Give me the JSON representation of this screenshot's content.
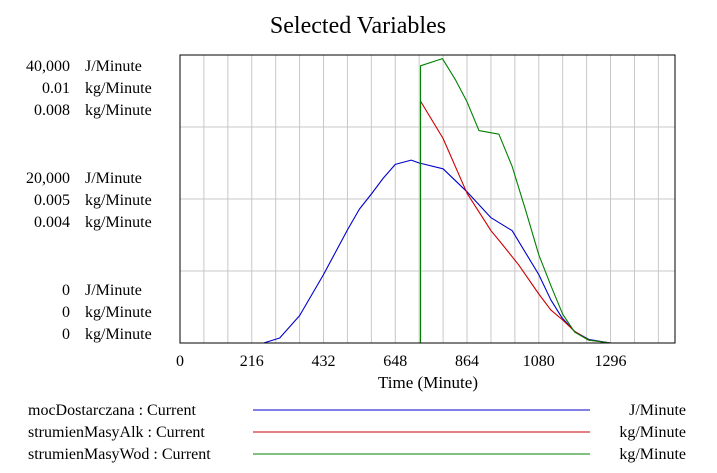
{
  "chart_data": {
    "type": "line",
    "title": "Selected Variables",
    "xlabel": "Time (Minute)",
    "xlim": [
      0,
      1490
    ],
    "xticks": [
      0,
      216,
      432,
      648,
      864,
      1080,
      1296
    ],
    "x_grid_step": 72,
    "grid": true,
    "legend_placement": "bottom",
    "y_axes": [
      {
        "unit": "J/Minute",
        "ticks": [
          "40,000",
          "20,000",
          "0"
        ],
        "ylim": [
          0,
          40000
        ]
      },
      {
        "unit": "kg/Minute",
        "ticks": [
          "0.01",
          "0.005",
          "0"
        ],
        "ylim": [
          0,
          0.01
        ]
      },
      {
        "unit": "kg/Minute",
        "ticks": [
          "0.008",
          "0.004",
          "0"
        ],
        "ylim": [
          0,
          0.008
        ]
      }
    ],
    "series": [
      {
        "name": "mocDostarczana : Current",
        "unit": "J/Minute",
        "axis": 0,
        "color": "#0000cc",
        "points": [
          [
            0,
            0
          ],
          [
            216,
            0
          ],
          [
            252,
            0
          ],
          [
            300,
            700
          ],
          [
            360,
            3800
          ],
          [
            432,
            9500
          ],
          [
            504,
            15700
          ],
          [
            540,
            18600
          ],
          [
            576,
            20700
          ],
          [
            612,
            22900
          ],
          [
            648,
            24800
          ],
          [
            696,
            25400
          ],
          [
            720,
            25000
          ],
          [
            792,
            24200
          ],
          [
            864,
            21000
          ],
          [
            936,
            17400
          ],
          [
            1000,
            15600
          ],
          [
            1080,
            9500
          ],
          [
            1116,
            6000
          ],
          [
            1150,
            3500
          ],
          [
            1188,
            1600
          ],
          [
            1230,
            500
          ],
          [
            1296,
            0
          ],
          [
            1490,
            0
          ]
        ]
      },
      {
        "name": "strumienMasyAlk : Current",
        "unit": "kg/Minute",
        "axis": 1,
        "color": "#cc0000",
        "points": [
          [
            0,
            0
          ],
          [
            724,
            0
          ],
          [
            724,
            0.0084
          ],
          [
            792,
            0.0071
          ],
          [
            864,
            0.0052
          ],
          [
            936,
            0.0039
          ],
          [
            972,
            0.0034
          ],
          [
            1020,
            0.0027
          ],
          [
            1080,
            0.0017
          ],
          [
            1116,
            0.00115
          ],
          [
            1152,
            0.0008
          ],
          [
            1188,
            0.0004
          ],
          [
            1230,
            0.0001
          ],
          [
            1296,
            0
          ],
          [
            1490,
            0
          ]
        ]
      },
      {
        "name": "strumienMasyWod : Current",
        "unit": "kg/Minute",
        "axis": 2,
        "color": "#008000",
        "points": [
          [
            0,
            0
          ],
          [
            724,
            0
          ],
          [
            724,
            0.0077
          ],
          [
            790,
            0.0079
          ],
          [
            830,
            0.0073
          ],
          [
            864,
            0.0067
          ],
          [
            900,
            0.0059
          ],
          [
            960,
            0.0058
          ],
          [
            1000,
            0.0049
          ],
          [
            1040,
            0.0037
          ],
          [
            1080,
            0.00245
          ],
          [
            1116,
            0.0016
          ],
          [
            1152,
            0.0008
          ],
          [
            1188,
            0.0003
          ],
          [
            1230,
            8e-05
          ],
          [
            1296,
            0
          ],
          [
            1490,
            0
          ]
        ]
      }
    ]
  }
}
